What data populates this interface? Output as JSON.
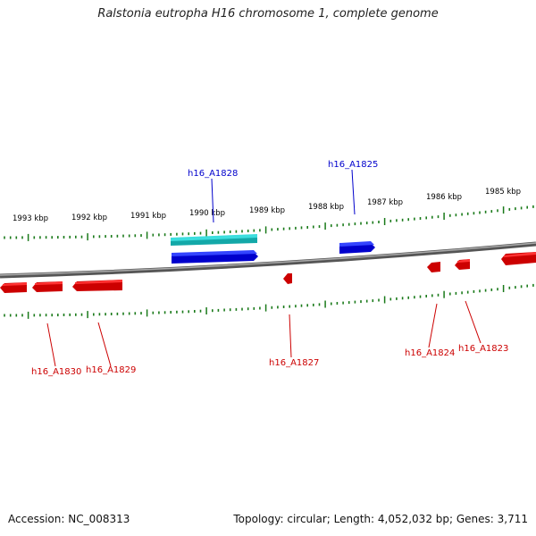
{
  "header": {
    "title": "Ralstonia eutropha H16 chromosome 1, complete genome"
  },
  "footer": {
    "accession": "Accession: NC_008313",
    "summary": "Topology: circular; Length: 4,052,032 bp; Genes: 3,711"
  },
  "colors": {
    "forward_gene": "#0000ee",
    "reverse_gene": "#ee0000",
    "highlight_gene": "#22c4c4",
    "backbone": "#777777",
    "ticks": "#1a7a1a"
  },
  "scale": {
    "labels": [
      "1993 kbp",
      "1992 kbp",
      "1991 kbp",
      "1990 kbp",
      "1989 kbp",
      "1988 kbp",
      "1987 kbp",
      "1986 kbp",
      "1985 kbp"
    ]
  },
  "genes": [
    {
      "id": "h16_A1828",
      "strand": "forward"
    },
    {
      "id": "h16_A1825",
      "strand": "forward"
    },
    {
      "id": "h16_A1830",
      "strand": "reverse"
    },
    {
      "id": "h16_A1829",
      "strand": "reverse"
    },
    {
      "id": "h16_A1827",
      "strand": "reverse"
    },
    {
      "id": "h16_A1824",
      "strand": "reverse"
    },
    {
      "id": "h16_A1823",
      "strand": "reverse"
    }
  ]
}
